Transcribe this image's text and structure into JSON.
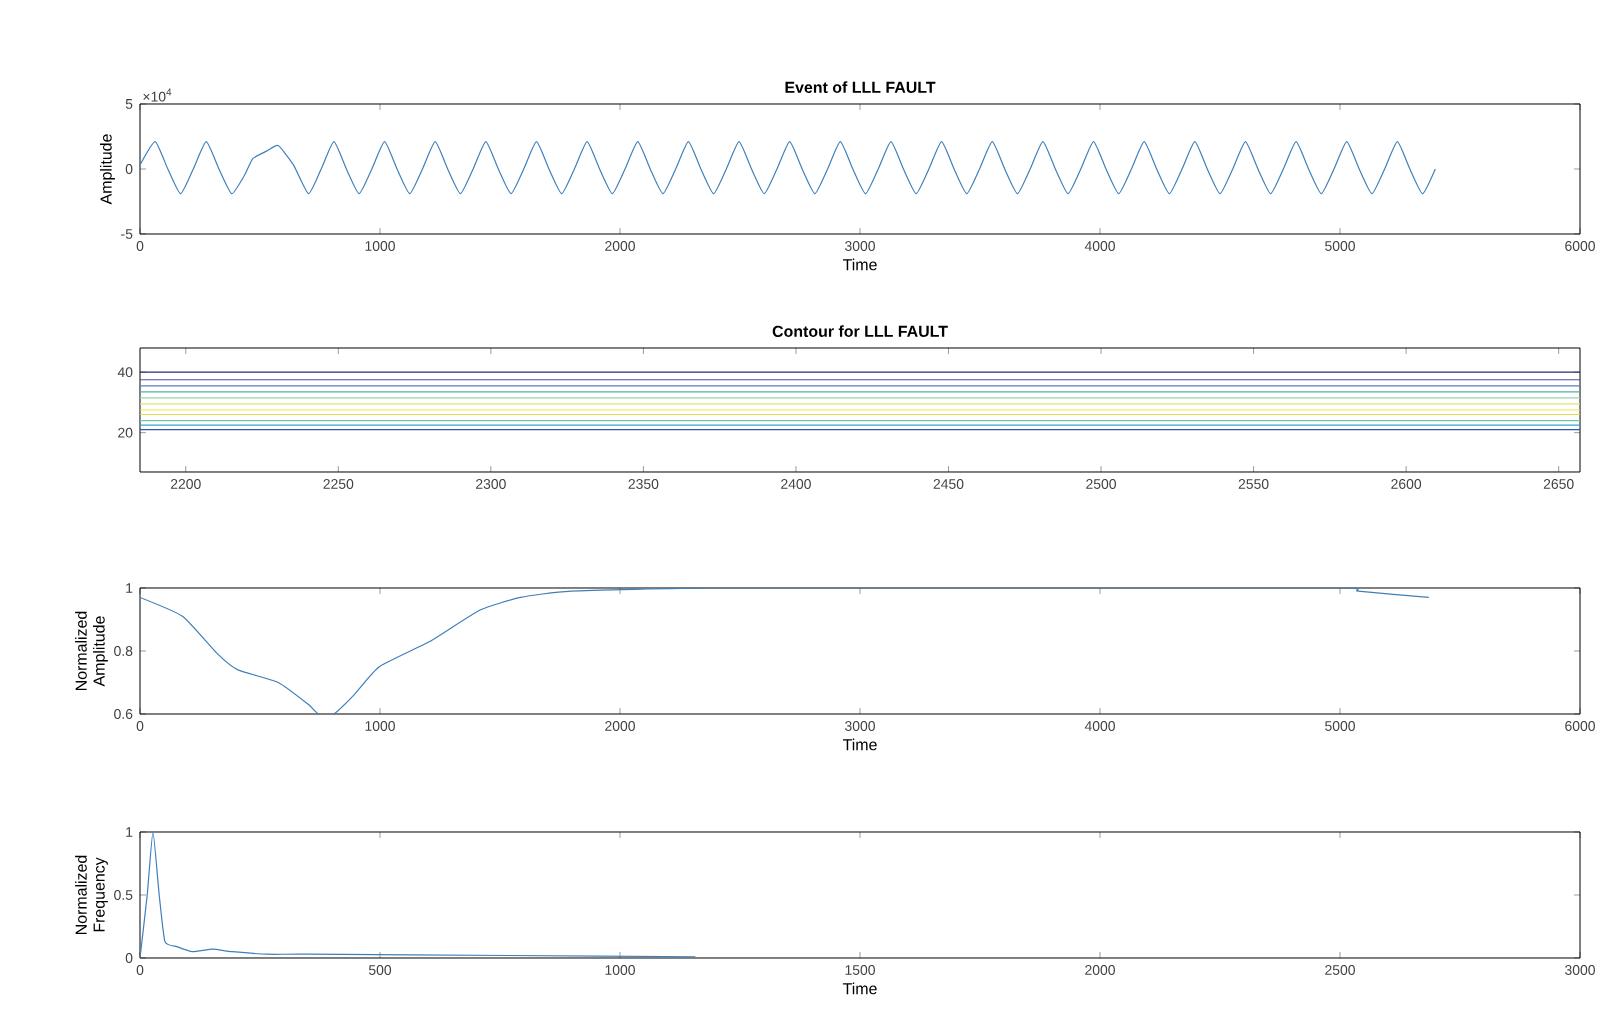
{
  "chart_data": [
    {
      "type": "line",
      "title": "Event of LLL FAULT",
      "xlabel": "Time",
      "ylabel": "Amplitude",
      "annotations": [
        "×10$^{4}$"
      ],
      "xlim": [
        0,
        6000
      ],
      "ylim": [
        -5,
        5
      ],
      "xticks": [
        0,
        1000,
        2000,
        3000,
        4000,
        5000,
        6000
      ],
      "yticks": [
        -5,
        0,
        5
      ],
      "series": [
        {
          "color": "#3f7fb8",
          "x": [
            0,
            63,
            116,
            169,
            222,
            276,
            329,
            382,
            435,
            470,
            530,
            576,
            640,
            702,
            755,
            808,
            860,
            913,
            966,
            1019,
            1071,
            1124,
            1177,
            1230,
            1282,
            1335,
            1388,
            1441,
            1493,
            1546,
            1599,
            1652,
            1704,
            1757,
            1810,
            1863,
            1915,
            1968,
            2021,
            2074,
            2126,
            2179,
            2232,
            2285,
            2337,
            2390,
            2443,
            2496,
            2548,
            2601,
            2654,
            2707,
            2759,
            2812,
            2865,
            2918,
            2970,
            3023,
            3076,
            3129,
            3181,
            3234,
            3287,
            3340,
            3392,
            3445,
            3498,
            3551,
            3603,
            3656,
            3709,
            3762,
            3814,
            3867,
            3920,
            3973,
            4025,
            4078,
            4131,
            4184,
            4236,
            4289,
            4342,
            4395,
            4447,
            4500,
            4553,
            4606,
            4658,
            4711,
            4764,
            4817,
            4869,
            4922,
            4975,
            5028,
            5080,
            5133,
            5186,
            5239,
            5291,
            5344,
            5397
          ],
          "values": [
            0.3,
            2.1,
            0,
            -1.9,
            0,
            2.1,
            0,
            -1.9,
            -0.5,
            0.8,
            1.4,
            1.8,
            0.3,
            -1.9,
            0,
            2.1,
            0,
            -1.9,
            0,
            2.1,
            0,
            -1.9,
            0,
            2.1,
            0,
            -1.9,
            0,
            2.1,
            0,
            -1.9,
            0,
            2.1,
            0,
            -1.9,
            0,
            2.1,
            0,
            -1.9,
            0,
            2.1,
            0,
            -1.9,
            0,
            2.1,
            0,
            -1.9,
            0,
            2.1,
            0,
            -1.9,
            0,
            2.1,
            0,
            -1.9,
            0,
            2.1,
            0,
            -1.9,
            0,
            2.1,
            0,
            -1.9,
            0,
            2.1,
            0,
            -1.9,
            0,
            2.1,
            0,
            -1.9,
            0,
            2.1,
            0,
            -1.9,
            0,
            2.1,
            0,
            -1.9,
            0,
            2.1,
            0,
            -1.9,
            0,
            2.1,
            0,
            -1.9,
            0,
            2.1,
            0,
            -1.9,
            0,
            2.1,
            0,
            -1.9,
            0,
            2.1,
            0,
            -1.9,
            0,
            2.1,
            0,
            -1.9,
            0
          ]
        }
      ]
    },
    {
      "type": "line",
      "title": "Contour for LLL FAULT",
      "xlim": [
        2185,
        2657
      ],
      "ylim": [
        7,
        48
      ],
      "xticks": [
        2200,
        2250,
        2300,
        2350,
        2400,
        2450,
        2500,
        2550,
        2600,
        2650
      ],
      "yticks": [
        20,
        40
      ],
      "x": [
        2185,
        2657
      ],
      "series": [
        {
          "color": "#2b2d6e",
          "values": [
            40,
            40
          ]
        },
        {
          "color": "#4a4f9a",
          "values": [
            37.5,
            37.5
          ]
        },
        {
          "color": "#5b7bb5",
          "values": [
            35.5,
            35.5
          ]
        },
        {
          "color": "#4fb3a5",
          "values": [
            33.5,
            33.5
          ]
        },
        {
          "color": "#9bd0a8",
          "values": [
            31.5,
            31.5
          ]
        },
        {
          "color": "#d9e67a",
          "values": [
            29.5,
            29.5
          ]
        },
        {
          "color": "#f2e34a",
          "values": [
            27.5,
            27.5
          ]
        },
        {
          "color": "#e6d84f",
          "values": [
            26,
            26
          ]
        },
        {
          "color": "#6cc8a0",
          "values": [
            24,
            24
          ]
        },
        {
          "color": "#3aa0d8",
          "values": [
            22.5,
            22.5
          ]
        },
        {
          "color": "#2c5aa8",
          "values": [
            21,
            21
          ]
        }
      ]
    },
    {
      "type": "line",
      "xlabel": "Time",
      "ylabel": "Normalized Amplitude",
      "xlim": [
        0,
        6000
      ],
      "ylim": [
        0.6,
        1
      ],
      "xticks": [
        0,
        1000,
        2000,
        3000,
        4000,
        5000,
        6000
      ],
      "yticks": [
        0.6,
        0.8,
        1
      ],
      "series": [
        {
          "color": "#3f7fb8",
          "x": [
            0,
            177,
            324,
            408,
            576,
            702,
            744,
            807,
            891,
            997,
            1207,
            1417,
            1585,
            1796,
            2384,
            3500,
            5000,
            5076,
            5370
          ],
          "values": [
            0.97,
            0.91,
            0.79,
            0.74,
            0.7,
            0.63,
            0.6,
            0.6,
            0.66,
            0.75,
            0.83,
            0.93,
            0.97,
            0.99,
            1.0,
            1.0,
            1.0,
            0.99,
            0.97
          ]
        }
      ]
    },
    {
      "type": "line",
      "xlabel": "Time",
      "ylabel": "Normalized Frequency",
      "xlim": [
        0,
        3000
      ],
      "ylim": [
        0,
        1
      ],
      "xticks": [
        0,
        500,
        1000,
        1500,
        2000,
        2500,
        3000
      ],
      "yticks": [
        0,
        0.5,
        1
      ],
      "series": [
        {
          "color": "#3f7fb8",
          "x": [
            0,
            15,
            27,
            40,
            52,
            77,
            109,
            151,
            192,
            266,
            350,
            768,
            1157
          ],
          "values": [
            0,
            0.5,
            1,
            0.5,
            0.13,
            0.09,
            0.05,
            0.07,
            0.05,
            0.03,
            0.03,
            0.02,
            0.01
          ]
        }
      ]
    }
  ]
}
